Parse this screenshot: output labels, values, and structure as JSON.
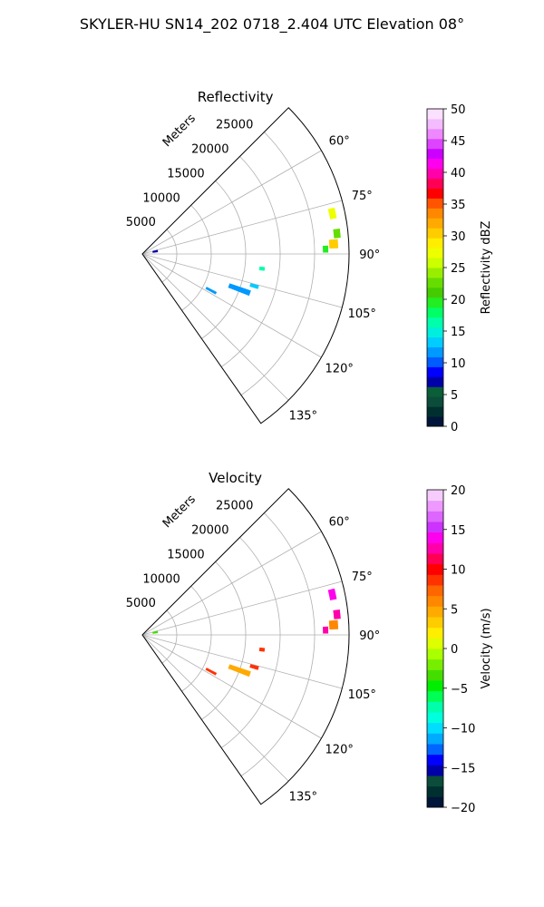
{
  "figure": {
    "title": "SKYLER-HU  SN14_202  0718_2.404 UTC Elevation 08°"
  },
  "chart_data": [
    {
      "type": "heatmap",
      "subtype": "polar-sector",
      "title": "Reflectivity",
      "radial_label": "Meters",
      "theta_min_deg": 45,
      "theta_max_deg": 145,
      "r_max": 30000,
      "radial_ticks": [
        5000,
        10000,
        15000,
        20000,
        25000
      ],
      "radial_tick_labels": [
        "5000",
        "10000",
        "15000",
        "20000",
        "25000"
      ],
      "angle_ticks": [
        60,
        75,
        90,
        105,
        120,
        135
      ],
      "angle_tick_labels": [
        "60°",
        "75°",
        "90°",
        "105°",
        "120°",
        "135°"
      ],
      "grid": true,
      "colorbar": {
        "label": "Reflectivity dBZ",
        "min": 0,
        "max": 50,
        "ticks": [
          0,
          5,
          10,
          15,
          20,
          25,
          30,
          35,
          40,
          45,
          50
        ],
        "tick_labels": [
          "0",
          "5",
          "10",
          "15",
          "20",
          "25",
          "30",
          "35",
          "40",
          "45",
          "50"
        ],
        "colors": [
          "#00153a",
          "#002f2f",
          "#0b4d3a",
          "#0a5e38",
          "#0000a8",
          "#0000ff",
          "#005cff",
          "#0099ff",
          "#00ccff",
          "#00eedd",
          "#00ffaa",
          "#00ff66",
          "#22ee22",
          "#44cc00",
          "#66dd00",
          "#99ee00",
          "#ccff00",
          "#eeff00",
          "#ffee00",
          "#ffcc00",
          "#ffaa00",
          "#ff8800",
          "#ff5500",
          "#ff0000",
          "#ff0055",
          "#ff00aa",
          "#ff00ee",
          "#cc00ff",
          "#dd44ff",
          "#ee88ff",
          "#f4bbff",
          "#fbe0ff"
        ]
      },
      "features": [
        {
          "theta": 78,
          "r": 28200,
          "value": 28,
          "r_len": 900,
          "t_len": 3.0
        },
        {
          "theta": 84,
          "r": 28400,
          "value": 22,
          "r_len": 900,
          "t_len": 2.5
        },
        {
          "theta": 87,
          "r": 27800,
          "value": 30,
          "r_len": 1200,
          "t_len": 2.5
        },
        {
          "theta": 88.5,
          "r": 26600,
          "value": 20,
          "r_len": 700,
          "t_len": 2.0
        },
        {
          "theta": 97,
          "r": 17500,
          "value": 17,
          "r_len": 700,
          "t_len": 1.5
        },
        {
          "theta": 110,
          "r": 15000,
          "value": 12,
          "r_len": 3200,
          "t_len": 2.5
        },
        {
          "theta": 106,
          "r": 16900,
          "value": 14,
          "r_len": 1200,
          "t_len": 1.5
        },
        {
          "theta": 118,
          "r": 11300,
          "value": 12,
          "r_len": 1600,
          "t_len": 1.5
        },
        {
          "theta": 79,
          "r": 1900,
          "value": 7,
          "r_len": 700,
          "t_len": 7
        }
      ]
    },
    {
      "type": "heatmap",
      "subtype": "polar-sector",
      "title": "Velocity",
      "radial_label": "Meters",
      "theta_min_deg": 45,
      "theta_max_deg": 145,
      "r_max": 30000,
      "radial_ticks": [
        5000,
        10000,
        15000,
        20000,
        25000
      ],
      "radial_tick_labels": [
        "5000",
        "10000",
        "15000",
        "20000",
        "25000"
      ],
      "angle_ticks": [
        60,
        75,
        90,
        105,
        120,
        135
      ],
      "angle_tick_labels": [
        "60°",
        "75°",
        "90°",
        "105°",
        "120°",
        "135°"
      ],
      "grid": true,
      "colorbar": {
        "label": "Velocity (m/s)",
        "min": -20,
        "max": 20,
        "ticks": [
          -20,
          -15,
          -10,
          -5,
          0,
          5,
          10,
          15,
          20
        ],
        "tick_labels": [
          "−20",
          "−15",
          "−10",
          "−5",
          "0",
          "5",
          "10",
          "15",
          "20"
        ],
        "colors": [
          "#00153a",
          "#002f2f",
          "#0b4d3a",
          "#0000a8",
          "#0000ff",
          "#0066ff",
          "#00aaff",
          "#00ddff",
          "#00ffdd",
          "#00ffaa",
          "#00ff55",
          "#00ee00",
          "#44dd00",
          "#77ee00",
          "#aaff00",
          "#ddff00",
          "#ffee00",
          "#ffcc00",
          "#ffaa00",
          "#ff8800",
          "#ff6600",
          "#ff3300",
          "#ff0000",
          "#ff0055",
          "#ff00aa",
          "#ff00ee",
          "#cc33ff",
          "#dd66ff",
          "#ee99ff",
          "#f6ccff"
        ]
      },
      "features": [
        {
          "theta": 78,
          "r": 28200,
          "value": 14,
          "r_len": 900,
          "t_len": 3.0
        },
        {
          "theta": 84,
          "r": 28400,
          "value": 12,
          "r_len": 900,
          "t_len": 2.5
        },
        {
          "theta": 87,
          "r": 27800,
          "value": 6,
          "r_len": 1200,
          "t_len": 2.5
        },
        {
          "theta": 88.5,
          "r": 26600,
          "value": 13,
          "r_len": 700,
          "t_len": 2.0
        },
        {
          "theta": 97,
          "r": 17500,
          "value": 9,
          "r_len": 700,
          "t_len": 1.5
        },
        {
          "theta": 110,
          "r": 15000,
          "value": 5,
          "r_len": 3200,
          "t_len": 2.5
        },
        {
          "theta": 106,
          "r": 16900,
          "value": 9,
          "r_len": 1200,
          "t_len": 1.5
        },
        {
          "theta": 118,
          "r": 11300,
          "value": 8,
          "r_len": 1600,
          "t_len": 1.5
        },
        {
          "theta": 79,
          "r": 1900,
          "value": -3,
          "r_len": 700,
          "t_len": 7
        }
      ]
    }
  ]
}
